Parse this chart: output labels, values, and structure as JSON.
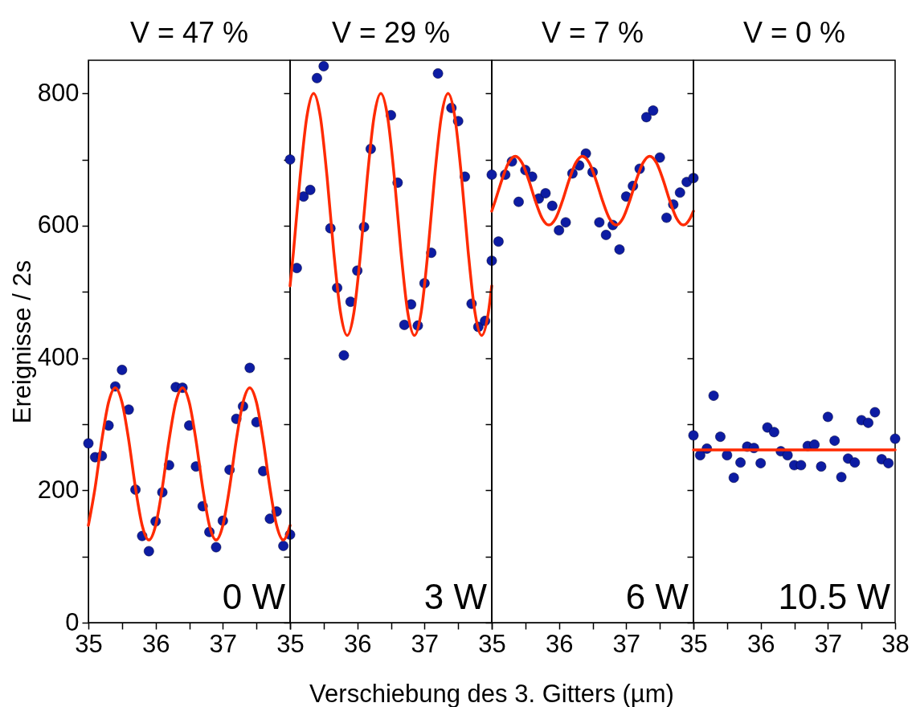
{
  "chart_data": [
    {
      "type": "scatter",
      "title": "V = 47 %",
      "xlabel": "Verschiebung des 3. Gitters (µm)",
      "ylabel": "Ereignisse / 2s",
      "annotations": [
        "0 W"
      ],
      "xlim": [
        35,
        38
      ],
      "xticks": [
        35,
        {
          "value": 35.5,
          "label": null
        },
        36,
        {
          "value": 36.5,
          "label": null
        },
        37,
        {
          "value": 37.5,
          "label": null
        },
        {
          "value": 38,
          "label": null
        }
      ],
      "ylim": [
        0,
        850
      ],
      "yticks": [
        0,
        {
          "value": 100,
          "label": null
        },
        200,
        {
          "value": 300,
          "label": null
        },
        400,
        {
          "value": 500,
          "label": null
        },
        600,
        {
          "value": 700,
          "label": null
        },
        800
      ],
      "grid": false,
      "series": [
        {
          "marker": "circle",
          "color": "#0d1ca3",
          "x": [
            35.0,
            35.1,
            35.2,
            35.3,
            35.4,
            35.5,
            35.6,
            35.7,
            35.8,
            35.9,
            36.0,
            36.1,
            36.2,
            36.3,
            36.4,
            36.5,
            36.6,
            36.7,
            36.8,
            36.9,
            37.0,
            37.1,
            37.2,
            37.3,
            37.4,
            37.5,
            37.6,
            37.7,
            37.8,
            37.9,
            38.0
          ],
          "values": [
            271,
            250,
            252,
            298,
            357,
            382,
            322,
            201,
            131,
            108,
            153,
            197,
            238,
            356,
            355,
            298,
            236,
            176,
            137,
            114,
            154,
            231,
            308,
            327,
            385,
            303,
            229,
            157,
            168,
            116,
            133
          ]
        },
        {
          "type": "line",
          "color": "#ff2a00",
          "x": [
            35.0,
            35.1,
            35.2,
            35.3,
            35.4,
            35.5,
            35.6,
            35.7,
            35.8,
            35.9,
            36.0,
            36.1,
            36.2,
            36.3,
            36.4,
            36.5,
            36.6,
            36.7,
            36.8,
            36.9,
            37.0,
            37.1,
            37.2,
            37.3,
            37.4,
            37.5,
            37.6,
            37.7,
            37.8,
            37.9,
            38.0
          ],
          "values": [
            147,
            204,
            276,
            333,
            355,
            333,
            276,
            204,
            147,
            125,
            147,
            204,
            276,
            333,
            355,
            333,
            276,
            204,
            147,
            125,
            147,
            204,
            276,
            333,
            355,
            333,
            276,
            204,
            147,
            125,
            147
          ]
        }
      ]
    },
    {
      "type": "scatter",
      "title": "V = 29 %",
      "annotations": [
        "3 W"
      ],
      "tick_labels": "x",
      "xlim": [
        35,
        38
      ],
      "xticks": [
        35,
        {
          "value": 35.5,
          "label": null
        },
        36,
        {
          "value": 36.5,
          "label": null
        },
        37,
        {
          "value": 37.5,
          "label": null
        },
        {
          "value": 38,
          "label": null
        }
      ],
      "ylim": [
        0,
        850
      ],
      "yticks": [
        {
          "value": 0,
          "label": null
        },
        {
          "value": 100,
          "label": null
        },
        {
          "value": 200,
          "label": null
        },
        {
          "value": 300,
          "label": null
        },
        {
          "value": 400,
          "label": null
        },
        {
          "value": 500,
          "label": null
        },
        {
          "value": 600,
          "label": null
        },
        {
          "value": 700,
          "label": null
        },
        {
          "value": 800,
          "label": null
        }
      ],
      "grid": false,
      "series": [
        {
          "marker": "circle",
          "color": "#0d1ca3",
          "x": [
            35.0,
            35.1,
            35.2,
            35.3,
            35.4,
            35.5,
            35.6,
            35.7,
            35.8,
            35.9,
            36.0,
            36.1,
            36.2,
            36.5,
            36.6,
            36.7,
            36.8,
            36.9,
            37.0,
            37.1,
            37.2,
            37.4,
            37.5,
            37.6,
            37.7,
            37.8,
            37.9,
            38.0
          ],
          "values": [
            700,
            536,
            644,
            654,
            823,
            841,
            596,
            506,
            404,
            485,
            532,
            598,
            716,
            767,
            665,
            450,
            481,
            449,
            513,
            559,
            830,
            778,
            758,
            674,
            482,
            447,
            456,
            547
          ]
        },
        {
          "type": "line",
          "color": "#ff2a00",
          "x": [
            35.0,
            35.05,
            35.15,
            35.25,
            35.35,
            35.45,
            35.55,
            35.65,
            35.75,
            35.85,
            35.95,
            36.05,
            36.15,
            36.25,
            36.35,
            36.45,
            36.55,
            36.65,
            36.75,
            36.85,
            36.95,
            37.05,
            37.15,
            37.25,
            37.35,
            37.45,
            37.55,
            37.65,
            37.75,
            37.85,
            37.95,
            38.0
          ],
          "values": [
            509,
            560,
            674,
            765,
            800,
            765,
            674,
            560,
            469,
            434,
            469,
            560,
            674,
            765,
            800,
            765,
            674,
            560,
            469,
            434,
            469,
            560,
            674,
            765,
            800,
            765,
            674,
            560,
            469,
            434,
            469,
            509
          ]
        }
      ]
    },
    {
      "type": "scatter",
      "title": "V = 7 %",
      "annotations": [
        "6 W"
      ],
      "tick_labels": "x",
      "xlim": [
        35,
        38
      ],
      "xticks": [
        35,
        {
          "value": 35.5,
          "label": null
        },
        36,
        {
          "value": 36.5,
          "label": null
        },
        37,
        {
          "value": 37.5,
          "label": null
        },
        {
          "value": 38,
          "label": null
        }
      ],
      "ylim": [
        0,
        850
      ],
      "yticks": [
        {
          "value": 0,
          "label": null
        },
        {
          "value": 100,
          "label": null
        },
        {
          "value": 200,
          "label": null
        },
        {
          "value": 300,
          "label": null
        },
        {
          "value": 400,
          "label": null
        },
        {
          "value": 500,
          "label": null
        },
        {
          "value": 600,
          "label": null
        },
        {
          "value": 700,
          "label": null
        },
        {
          "value": 800,
          "label": null
        }
      ],
      "grid": false,
      "series": [
        {
          "marker": "circle",
          "color": "#0d1ca3",
          "x": [
            35.0,
            35.1,
            35.2,
            35.3,
            35.4,
            35.5,
            35.6,
            35.7,
            35.8,
            35.9,
            36.0,
            36.1,
            36.2,
            36.3,
            36.4,
            36.5,
            36.6,
            36.7,
            36.8,
            36.9,
            37.0,
            37.1,
            37.2,
            37.3,
            37.4,
            37.5,
            37.6,
            37.7,
            37.8,
            37.9,
            38.0
          ],
          "values": [
            677,
            576,
            677,
            697,
            636,
            684,
            674,
            641,
            649,
            630,
            593,
            605,
            679,
            691,
            709,
            681,
            605,
            586,
            601,
            564,
            644,
            660,
            686,
            764,
            774,
            703,
            612,
            632,
            650,
            666,
            672
          ]
        },
        {
          "type": "line",
          "color": "#ff2a00",
          "x": [
            35.0,
            35.05,
            35.15,
            35.25,
            35.35,
            35.45,
            35.55,
            35.65,
            35.75,
            35.85,
            35.95,
            36.05,
            36.15,
            36.25,
            36.35,
            36.45,
            36.55,
            36.65,
            36.75,
            36.85,
            36.95,
            37.05,
            37.15,
            37.25,
            37.35,
            37.45,
            37.55,
            37.65,
            37.75,
            37.85,
            37.95,
            38.0
          ],
          "values": [
            622,
            637,
            669,
            695,
            705,
            695,
            669,
            637,
            611,
            601,
            611,
            637,
            669,
            695,
            705,
            695,
            669,
            637,
            611,
            601,
            611,
            637,
            669,
            695,
            705,
            695,
            669,
            637,
            611,
            601,
            611,
            622
          ]
        }
      ]
    },
    {
      "type": "scatter",
      "title": "V = 0 %",
      "annotations": [
        "10.5 W"
      ],
      "tick_labels": "x",
      "xlim": [
        35,
        38
      ],
      "xticks": [
        35,
        {
          "value": 35.5,
          "label": null
        },
        36,
        {
          "value": 36.5,
          "label": null
        },
        37,
        {
          "value": 37.5,
          "label": null
        },
        38
      ],
      "ylim": [
        0,
        850
      ],
      "yticks": [
        {
          "value": 0,
          "label": null
        },
        {
          "value": 100,
          "label": null
        },
        {
          "value": 200,
          "label": null
        },
        {
          "value": 300,
          "label": null
        },
        {
          "value": 400,
          "label": null
        },
        {
          "value": 500,
          "label": null
        },
        {
          "value": 600,
          "label": null
        },
        {
          "value": 700,
          "label": null
        },
        {
          "value": 800,
          "label": null
        }
      ],
      "grid": false,
      "series": [
        {
          "marker": "circle",
          "color": "#0d1ca3",
          "x": [
            35.0,
            35.1,
            35.2,
            35.3,
            35.4,
            35.5,
            35.6,
            35.7,
            35.8,
            35.9,
            36.0,
            36.1,
            36.2,
            36.3,
            36.4,
            36.5,
            36.6,
            36.7,
            36.8,
            36.9,
            37.0,
            37.1,
            37.2,
            37.3,
            37.4,
            37.5,
            37.6,
            37.7,
            37.8,
            37.9,
            38.0
          ],
          "values": [
            283,
            253,
            263,
            343,
            281,
            253,
            219,
            242,
            266,
            264,
            241,
            295,
            288,
            259,
            253,
            238,
            238,
            267,
            269,
            236,
            311,
            275,
            220,
            248,
            242,
            306,
            302,
            318,
            247,
            241,
            278
          ]
        },
        {
          "type": "line",
          "color": "#ff2a00",
          "x": [
            35.0,
            38.0
          ],
          "values": [
            261,
            261
          ]
        }
      ]
    }
  ]
}
